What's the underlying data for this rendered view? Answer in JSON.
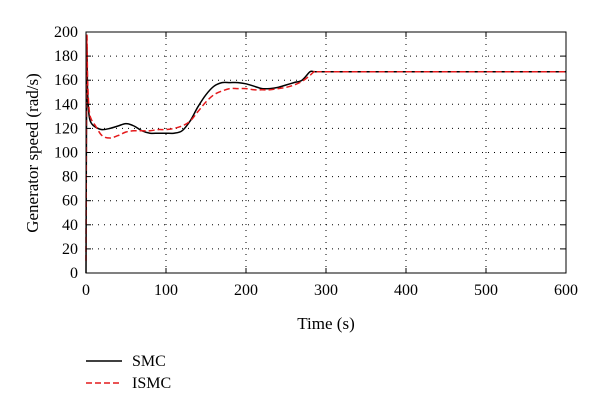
{
  "chart_data": {
    "type": "line",
    "xlabel": "Time (s)",
    "ylabel": "Generator speed (rad/s)",
    "xlim": [
      0,
      600
    ],
    "ylim": [
      0,
      200
    ],
    "xticks": [
      0,
      100,
      200,
      300,
      400,
      500,
      600
    ],
    "yticks": [
      0,
      20,
      40,
      60,
      80,
      100,
      120,
      140,
      160,
      180,
      200
    ],
    "grid": "dotted",
    "legend_position": "bottom-left, below plot",
    "series": [
      {
        "name": "SMC",
        "color": "#000000",
        "style": "solid",
        "x": [
          0,
          1,
          2,
          4,
          7,
          12,
          20,
          30,
          40,
          50,
          60,
          70,
          80,
          90,
          100,
          110,
          120,
          130,
          140,
          150,
          160,
          170,
          180,
          190,
          200,
          210,
          220,
          230,
          240,
          250,
          260,
          270,
          280,
          285,
          290,
          300,
          400,
          500,
          600
        ],
        "y": [
          0,
          180,
          150,
          130,
          124,
          121,
          119,
          120,
          122,
          124,
          122,
          118,
          116,
          116,
          116,
          116,
          118,
          126,
          138,
          148,
          155,
          158,
          158,
          158,
          157,
          155,
          153,
          153,
          154,
          156,
          158,
          160,
          167,
          167,
          167,
          167,
          167,
          167,
          167
        ]
      },
      {
        "name": "ISMC",
        "color": "#e41a1c",
        "style": "dashed",
        "x": [
          0,
          1,
          2,
          4,
          7,
          12,
          20,
          30,
          40,
          50,
          60,
          70,
          80,
          90,
          100,
          110,
          120,
          130,
          140,
          150,
          160,
          170,
          180,
          190,
          200,
          210,
          220,
          230,
          240,
          250,
          260,
          270,
          280,
          285,
          290,
          300,
          400,
          500,
          600
        ],
        "y": [
          10,
          190,
          160,
          135,
          127,
          122,
          114,
          112,
          114,
          117,
          118,
          118,
          118,
          119,
          119,
          120,
          122,
          126,
          134,
          142,
          148,
          151,
          153,
          153,
          153,
          152,
          152,
          152,
          153,
          154,
          156,
          159,
          164,
          167,
          167,
          167,
          167,
          167,
          167
        ]
      }
    ]
  }
}
